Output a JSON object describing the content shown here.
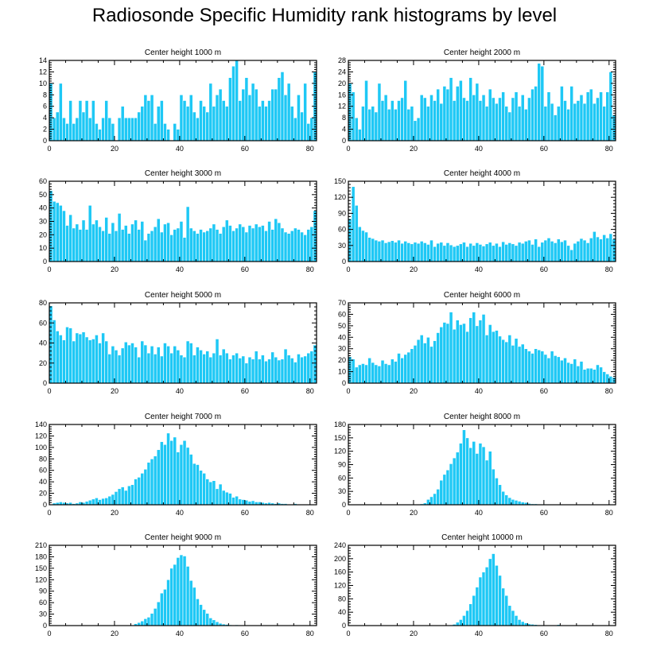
{
  "title": "Radiosonde Specific Humidity rank histograms by level",
  "colors": {
    "bar": "#1ec8f5",
    "bar_edge": "#ffffff",
    "axis": "#000000"
  },
  "chart_data": [
    {
      "type": "bar",
      "title": "Center height 1000 m",
      "xlabel": "",
      "ylabel": "",
      "xlim": [
        0,
        82
      ],
      "xticks": [
        0,
        20,
        40,
        60,
        80
      ],
      "ylim": [
        0,
        14
      ],
      "yticks": [
        0,
        2,
        4,
        6,
        8,
        10,
        12,
        14
      ],
      "values": [
        10,
        4,
        5,
        10,
        4,
        3,
        7,
        3,
        4,
        7,
        5,
        7,
        4,
        7,
        3,
        2,
        4,
        7,
        4,
        3,
        0,
        4,
        6,
        4,
        4,
        4,
        4,
        5,
        6,
        8,
        7,
        8,
        3,
        6,
        7,
        3,
        2,
        0,
        3,
        2,
        8,
        7,
        6,
        8,
        5,
        4,
        7,
        6,
        5,
        10,
        6,
        8,
        9,
        7,
        6,
        11,
        13,
        14,
        7,
        9,
        11,
        8,
        10,
        9,
        6,
        7,
        6,
        7,
        9,
        9,
        11,
        12,
        8,
        10,
        6,
        4,
        8,
        5,
        10,
        3,
        4,
        12
      ]
    },
    {
      "type": "bar",
      "title": "Center height 2000 m",
      "xlabel": "",
      "ylabel": "",
      "xlim": [
        0,
        82
      ],
      "xticks": [
        0,
        20,
        40,
        60,
        80
      ],
      "ylim": [
        0,
        28
      ],
      "yticks": [
        0,
        4,
        8,
        12,
        16,
        20,
        24,
        28
      ],
      "values": [
        20,
        17,
        8,
        4,
        12,
        21,
        11,
        12,
        10,
        20,
        14,
        16,
        11,
        14,
        11,
        14,
        15,
        21,
        11,
        12,
        7,
        8,
        16,
        15,
        12,
        16,
        14,
        18,
        13,
        19,
        18,
        22,
        14,
        19,
        21,
        15,
        14,
        22,
        16,
        20,
        14,
        16,
        12,
        18,
        15,
        13,
        15,
        17,
        12,
        10,
        15,
        17,
        12,
        16,
        11,
        15,
        18,
        19,
        27,
        26,
        12,
        17,
        13,
        9,
        12,
        19,
        14,
        11,
        19,
        13,
        14,
        16,
        13,
        17,
        18,
        13,
        15,
        17,
        12,
        17,
        24,
        9
      ]
    },
    {
      "type": "bar",
      "title": "Center height 3000 m",
      "xlabel": "",
      "ylabel": "",
      "xlim": [
        0,
        82
      ],
      "xticks": [
        0,
        20,
        40,
        60,
        80
      ],
      "ylim": [
        0,
        60
      ],
      "yticks": [
        0,
        10,
        20,
        30,
        40,
        50,
        60
      ],
      "values": [
        53,
        45,
        44,
        42,
        38,
        27,
        35,
        25,
        28,
        24,
        31,
        24,
        42,
        28,
        31,
        26,
        23,
        33,
        21,
        29,
        23,
        36,
        24,
        27,
        21,
        28,
        31,
        24,
        30,
        16,
        21,
        23,
        26,
        32,
        22,
        28,
        29,
        20,
        24,
        25,
        30,
        18,
        41,
        25,
        23,
        21,
        24,
        22,
        23,
        25,
        28,
        24,
        21,
        26,
        31,
        27,
        23,
        25,
        28,
        26,
        22,
        27,
        25,
        28,
        26,
        27,
        23,
        30,
        24,
        32,
        29,
        25,
        22,
        21,
        23,
        25,
        24,
        22,
        20,
        24,
        26,
        38
      ]
    },
    {
      "type": "bar",
      "title": "Center height 4000 m",
      "xlabel": "",
      "ylabel": "",
      "xlim": [
        0,
        82
      ],
      "xticks": [
        0,
        20,
        40,
        60,
        80
      ],
      "ylim": [
        0,
        150
      ],
      "yticks": [
        0,
        30,
        60,
        90,
        120,
        150
      ],
      "values": [
        80,
        140,
        105,
        65,
        58,
        55,
        45,
        43,
        40,
        38,
        40,
        35,
        37,
        39,
        36,
        40,
        34,
        38,
        35,
        33,
        36,
        34,
        38,
        35,
        32,
        40,
        28,
        34,
        36,
        30,
        35,
        31,
        28,
        30,
        33,
        36,
        28,
        34,
        30,
        35,
        32,
        29,
        33,
        36,
        30,
        34,
        28,
        37,
        32,
        35,
        33,
        30,
        36,
        34,
        38,
        40,
        32,
        42,
        28,
        36,
        40,
        44,
        38,
        35,
        42,
        37,
        40,
        30,
        22,
        34,
        38,
        43,
        40,
        35,
        44,
        56,
        46,
        42,
        50,
        44,
        52,
        42
      ]
    },
    {
      "type": "bar",
      "title": "Center height 5000 m",
      "xlabel": "",
      "ylabel": "",
      "xlim": [
        0,
        82
      ],
      "xticks": [
        0,
        20,
        40,
        60,
        80
      ],
      "ylim": [
        0,
        80
      ],
      "yticks": [
        0,
        20,
        40,
        60,
        80
      ],
      "values": [
        77,
        63,
        52,
        48,
        43,
        56,
        55,
        42,
        50,
        49,
        51,
        46,
        43,
        44,
        48,
        40,
        50,
        42,
        29,
        37,
        33,
        28,
        35,
        41,
        38,
        40,
        36,
        26,
        42,
        38,
        30,
        37,
        29,
        36,
        27,
        40,
        37,
        30,
        37,
        33,
        28,
        26,
        42,
        40,
        28,
        36,
        33,
        29,
        32,
        26,
        30,
        44,
        28,
        34,
        30,
        24,
        28,
        30,
        25,
        27,
        20,
        26,
        24,
        32,
        24,
        28,
        22,
        24,
        31,
        26,
        23,
        24,
        34,
        28,
        25,
        21,
        29,
        26,
        27,
        30,
        32,
        38
      ]
    },
    {
      "type": "bar",
      "title": "Center height 6000 m",
      "xlabel": "",
      "ylabel": "",
      "xlim": [
        0,
        82
      ],
      "xticks": [
        0,
        20,
        40,
        60,
        80
      ],
      "ylim": [
        0,
        70
      ],
      "yticks": [
        0,
        10,
        20,
        30,
        40,
        50,
        60,
        70
      ],
      "values": [
        23,
        21,
        14,
        16,
        17,
        16,
        22,
        18,
        16,
        15,
        20,
        17,
        16,
        21,
        19,
        26,
        22,
        25,
        27,
        30,
        33,
        38,
        42,
        35,
        40,
        32,
        37,
        44,
        49,
        53,
        52,
        62,
        47,
        55,
        51,
        52,
        45,
        57,
        62,
        50,
        55,
        60,
        42,
        51,
        45,
        46,
        41,
        38,
        36,
        42,
        33,
        39,
        32,
        34,
        30,
        28,
        26,
        30,
        29,
        28,
        25,
        22,
        28,
        24,
        23,
        20,
        22,
        18,
        17,
        21,
        15,
        19,
        12,
        13,
        13,
        12,
        16,
        14,
        10,
        8,
        6,
        5
      ]
    },
    {
      "type": "bar",
      "title": "Center height 7000 m",
      "xlabel": "",
      "ylabel": "",
      "xlim": [
        0,
        82
      ],
      "xticks": [
        0,
        20,
        40,
        60,
        80
      ],
      "ylim": [
        0,
        140
      ],
      "yticks": [
        0,
        20,
        40,
        60,
        80,
        100,
        120,
        140
      ],
      "values": [
        1,
        3,
        4,
        5,
        4,
        3,
        4,
        2,
        3,
        5,
        4,
        6,
        8,
        10,
        12,
        9,
        11,
        12,
        15,
        18,
        23,
        28,
        31,
        25,
        33,
        35,
        45,
        48,
        55,
        62,
        74,
        80,
        85,
        96,
        110,
        105,
        125,
        112,
        118,
        92,
        105,
        112,
        100,
        88,
        72,
        70,
        60,
        55,
        45,
        40,
        42,
        28,
        36,
        25,
        22,
        20,
        13,
        15,
        10,
        9,
        8,
        6,
        7,
        5,
        5,
        4,
        3,
        4,
        3,
        2,
        3,
        2,
        2,
        1,
        1,
        2,
        1,
        1,
        1,
        0,
        0,
        0
      ]
    },
    {
      "type": "bar",
      "title": "Center height 8000 m",
      "xlabel": "",
      "ylabel": "",
      "xlim": [
        0,
        82
      ],
      "xticks": [
        0,
        20,
        40,
        60,
        80
      ],
      "ylim": [
        0,
        180
      ],
      "yticks": [
        0,
        30,
        60,
        90,
        120,
        150,
        180
      ],
      "values": [
        0,
        0,
        0,
        0,
        0,
        0,
        0,
        0,
        0,
        0,
        0,
        0,
        0,
        0,
        0,
        0,
        0,
        0,
        0,
        0,
        0,
        0,
        2,
        4,
        12,
        18,
        25,
        35,
        55,
        68,
        78,
        92,
        105,
        118,
        138,
        168,
        150,
        128,
        142,
        115,
        138,
        130,
        100,
        120,
        80,
        60,
        45,
        30,
        22,
        16,
        12,
        10,
        8,
        6,
        5,
        3,
        2,
        2,
        1,
        1,
        1,
        0,
        0,
        0,
        0,
        0,
        0,
        0,
        0,
        0,
        0,
        0,
        0,
        0,
        0,
        0,
        0,
        0,
        0,
        0,
        0,
        0
      ]
    },
    {
      "type": "bar",
      "title": "Center height 9000 m",
      "xlabel": "",
      "ylabel": "",
      "xlim": [
        0,
        82
      ],
      "xticks": [
        0,
        20,
        40,
        60,
        80
      ],
      "ylim": [
        0,
        210
      ],
      "yticks": [
        0,
        30,
        60,
        90,
        120,
        150,
        180,
        210
      ],
      "values": [
        0,
        0,
        0,
        0,
        0,
        0,
        0,
        0,
        0,
        0,
        0,
        0,
        0,
        0,
        0,
        0,
        0,
        0,
        0,
        0,
        0,
        0,
        0,
        0,
        0,
        1,
        5,
        8,
        12,
        18,
        22,
        32,
        45,
        62,
        85,
        95,
        120,
        150,
        160,
        178,
        185,
        182,
        155,
        118,
        100,
        70,
        55,
        42,
        32,
        20,
        15,
        10,
        6,
        4,
        3,
        2,
        1,
        2,
        1,
        1,
        0,
        0,
        0,
        0,
        0,
        0,
        0,
        0,
        0,
        0,
        0,
        0,
        0,
        0,
        0,
        0,
        0,
        0,
        0,
        0,
        0,
        0
      ]
    },
    {
      "type": "bar",
      "title": "Center height 10000 m",
      "xlabel": "",
      "ylabel": "",
      "xlim": [
        0,
        82
      ],
      "xticks": [
        0,
        20,
        40,
        60,
        80
      ],
      "ylim": [
        0,
        240
      ],
      "yticks": [
        0,
        40,
        80,
        120,
        160,
        200,
        240
      ],
      "values": [
        0,
        0,
        0,
        0,
        0,
        0,
        0,
        0,
        0,
        0,
        0,
        0,
        0,
        0,
        0,
        0,
        0,
        0,
        0,
        0,
        0,
        0,
        0,
        0,
        0,
        0,
        0,
        0,
        0,
        0,
        0,
        2,
        4,
        10,
        18,
        30,
        45,
        65,
        90,
        115,
        145,
        160,
        175,
        200,
        215,
        180,
        150,
        112,
        90,
        60,
        45,
        30,
        18,
        12,
        8,
        5,
        4,
        3,
        2,
        2,
        1,
        1,
        1,
        1,
        3,
        1,
        1,
        1,
        0,
        0,
        0,
        0,
        0,
        0,
        0,
        0,
        0,
        0,
        0,
        0,
        0,
        0
      ]
    }
  ]
}
